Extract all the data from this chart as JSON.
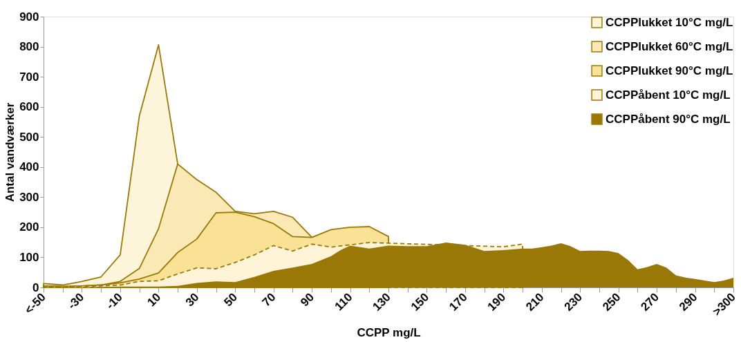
{
  "chart_data": {
    "type": "area",
    "xlabel": "CCPP mg/L",
    "ylabel": "Antal vandværker",
    "xlim": [
      -50,
      310
    ],
    "ylim": [
      0,
      900
    ],
    "xticks": [
      {
        "value": -50,
        "label": "<-50"
      },
      {
        "value": -40,
        "label": null
      },
      -30,
      {
        "value": -20,
        "label": null
      },
      -10,
      {
        "value": 0,
        "label": null
      },
      10,
      {
        "value": 20,
        "label": null
      },
      30,
      {
        "value": 40,
        "label": null
      },
      50,
      {
        "value": 60,
        "label": null
      },
      70,
      {
        "value": 80,
        "label": null
      },
      90,
      {
        "value": 100,
        "label": null
      },
      110,
      {
        "value": 120,
        "label": null
      },
      130,
      {
        "value": 140,
        "label": null
      },
      150,
      {
        "value": 160,
        "label": null
      },
      170,
      {
        "value": 180,
        "label": null
      },
      190,
      {
        "value": 200,
        "label": null
      },
      210,
      {
        "value": 220,
        "label": null
      },
      230,
      {
        "value": 240,
        "label": null
      },
      250,
      {
        "value": 260,
        "label": null
      },
      270,
      {
        "value": 280,
        "label": null
      },
      290,
      {
        "value": 300,
        "label": null
      },
      {
        "value": 310,
        "label": ">300"
      }
    ],
    "yticks": [
      0,
      100,
      200,
      300,
      400,
      500,
      600,
      700,
      800,
      900
    ],
    "grid": false,
    "legend": "top right",
    "series": [
      {
        "name": "CCPPlukket 10°C mg/L",
        "color": "#fdf5d9",
        "x": [
          -50,
          -40,
          -30,
          -20,
          -10,
          0,
          10,
          20
        ],
        "values": [
          13,
          8,
          20,
          35,
          108,
          570,
          806,
          410
        ]
      },
      {
        "name": "CCPPlukket 60°C mg/L",
        "color": "#fbe9b5",
        "x": [
          -50,
          -40,
          -30,
          -20,
          -10,
          0,
          10,
          20,
          30,
          40,
          50,
          60,
          70,
          80,
          90
        ],
        "values": [
          5,
          3,
          5,
          8,
          20,
          63,
          195,
          410,
          358,
          316,
          253,
          245,
          253,
          233,
          167
        ]
      },
      {
        "name": "CCPPlukket 90°C mg/L",
        "color": "#f9e196",
        "x": [
          -50,
          -40,
          -30,
          -20,
          -10,
          0,
          10,
          20,
          30,
          40,
          50,
          60,
          70,
          80,
          90,
          100,
          110,
          120,
          130
        ],
        "values": [
          5,
          3,
          5,
          8,
          15,
          28,
          48,
          116,
          161,
          248,
          250,
          235,
          212,
          169,
          166,
          192,
          200,
          202,
          169
        ]
      },
      {
        "name": "CCPPåbent 10°C mg/L",
        "color": "#fdf3d6",
        "line_style": "dashed",
        "x": [
          -50,
          -40,
          -30,
          -20,
          -10,
          0,
          10,
          20,
          30,
          40,
          50,
          60,
          70,
          80,
          90,
          100,
          110,
          120,
          130,
          140,
          150,
          160,
          170,
          180,
          190,
          200
        ],
        "values": [
          3,
          2,
          3,
          5,
          8,
          20,
          22,
          45,
          65,
          62,
          83,
          108,
          139,
          121,
          144,
          134,
          null,
          149,
          null,
          null,
          null,
          null,
          null,
          null,
          135,
          144
        ]
      },
      {
        "name": "CCPPåbent 90°C mg/L",
        "color": "#9a7808",
        "x": [
          -50,
          -40,
          -30,
          -20,
          -10,
          0,
          10,
          20,
          30,
          40,
          50,
          60,
          70,
          80,
          90,
          100,
          105,
          110,
          120,
          130,
          140,
          150,
          160,
          170,
          180,
          190,
          200,
          205,
          210,
          215,
          220,
          225,
          230,
          235,
          240,
          245,
          250,
          255,
          260,
          265,
          270,
          275,
          280,
          285,
          290,
          295,
          300,
          305,
          310
        ],
        "values": [
          0,
          0,
          0,
          2,
          3,
          3,
          3,
          5,
          15,
          20,
          18,
          35,
          55,
          66,
          78,
          104,
          124,
          139,
          129,
          139,
          137,
          137,
          149,
          142,
          121,
          124,
          129,
          129,
          134,
          139,
          147,
          137,
          121,
          122,
          122,
          121,
          114,
          91,
          60,
          68,
          78,
          66,
          40,
          33,
          28,
          23,
          18,
          23,
          32
        ]
      }
    ]
  }
}
